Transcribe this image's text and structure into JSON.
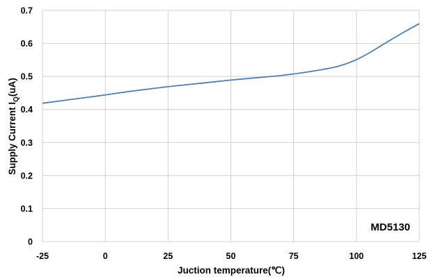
{
  "chart_data": {
    "type": "line",
    "title": "",
    "xlabel": "Juction temperature(℃)",
    "ylabel_main": "Supply Current I",
    "ylabel_sub": "Q",
    "ylabel_tail": "(uA)",
    "annotation": "MD5130",
    "xlim": [
      -25,
      125
    ],
    "ylim": [
      0,
      0.7
    ],
    "x_ticks": [
      "-25",
      "0",
      "25",
      "50",
      "75",
      "100",
      "125"
    ],
    "y_ticks": [
      "0",
      "0.1",
      "0.2",
      "0.3",
      "0.4",
      "0.5",
      "0.6",
      "0.7"
    ],
    "grid": true,
    "legend": "none",
    "series": [
      {
        "color": "#4a7ebb",
        "x": [
          -25,
          -10,
          0,
          10,
          25,
          40,
          50,
          60,
          70,
          80,
          90,
          95,
          100,
          105,
          110,
          115,
          120,
          125
        ],
        "y": [
          0.419,
          0.434,
          0.444,
          0.455,
          0.469,
          0.481,
          0.489,
          0.496,
          0.503,
          0.513,
          0.526,
          0.536,
          0.551,
          0.571,
          0.594,
          0.617,
          0.639,
          0.66
        ]
      }
    ]
  }
}
